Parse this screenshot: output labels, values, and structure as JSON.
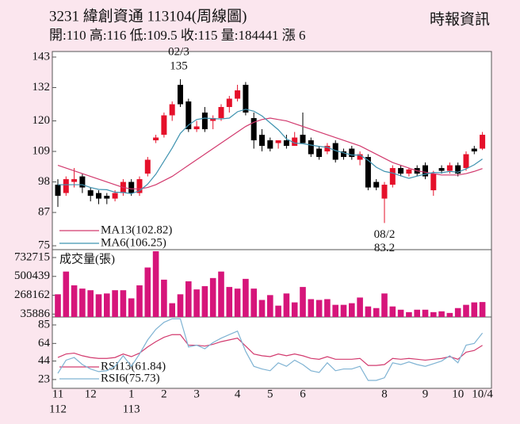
{
  "header": {
    "title": "3231 緯創資通 113104(周線圖)",
    "source": "時報資訊",
    "quote": "開:110 高:116 低:109.5 收:115 量:184441 漲 6"
  },
  "chart_data": [
    {
      "type": "candlestick",
      "categories": [
        "11",
        null,
        null,
        null,
        "12",
        null,
        null,
        null,
        null,
        "1",
        null,
        null,
        null,
        "2",
        null,
        null,
        null,
        "3",
        null,
        null,
        null,
        null,
        "4",
        null,
        null,
        null,
        "5",
        null,
        null,
        null,
        "6",
        null,
        null,
        null,
        null,
        null,
        null,
        null,
        null,
        null,
        "8",
        null,
        null,
        null,
        null,
        "9",
        null,
        null,
        null,
        "10",
        null,
        null,
        "10/4"
      ],
      "year_labels": [
        "112",
        null,
        null,
        null,
        null,
        null,
        null,
        null,
        null,
        "113",
        null,
        null,
        null,
        null,
        null,
        null,
        null,
        null,
        null,
        null,
        null,
        null,
        null,
        null,
        null,
        null,
        null,
        null,
        null,
        null,
        null,
        null,
        null,
        null,
        null,
        null,
        null,
        null,
        null,
        null,
        null,
        null,
        null,
        null,
        null,
        null,
        null,
        null,
        null,
        null,
        null,
        null,
        null
      ],
      "open": [
        97,
        94,
        98,
        100,
        95,
        94,
        93,
        92,
        94,
        98,
        94,
        101,
        113,
        115,
        122,
        133,
        127,
        117,
        123,
        120,
        121,
        125,
        128,
        133,
        121,
        115,
        113,
        112,
        113,
        111,
        115,
        113,
        110,
        109,
        112,
        109,
        110,
        106,
        107,
        98,
        92,
        97,
        103,
        101,
        103,
        104,
        95,
        103,
        102,
        104,
        103,
        110,
        110
      ],
      "high": [
        99,
        100,
        103,
        101,
        96,
        95,
        94,
        95,
        99,
        99,
        100,
        107,
        115,
        123,
        127,
        135,
        128,
        120,
        125,
        122,
        126,
        129,
        133,
        134,
        123,
        117,
        114,
        113,
        115,
        116,
        123,
        114,
        111,
        112,
        113,
        110,
        111,
        109,
        108,
        99,
        98,
        104,
        104,
        103,
        104,
        105,
        102,
        104,
        105,
        105,
        109,
        111,
        116
      ],
      "low": [
        89,
        93,
        96,
        94,
        91,
        90,
        90,
        91,
        93,
        93,
        93,
        100,
        112,
        114,
        120,
        125,
        116,
        116,
        116,
        117,
        120,
        123,
        127,
        122,
        110,
        109,
        109,
        110,
        110,
        111,
        112,
        107,
        106,
        108,
        105,
        106,
        106,
        104,
        95,
        95,
        83.2,
        96,
        100,
        100,
        100,
        99,
        93,
        101,
        101,
        100,
        102,
        108,
        109.5
      ],
      "close": [
        93,
        99,
        99,
        96,
        93,
        92,
        92,
        94,
        98,
        94,
        99,
        106,
        114,
        122,
        126,
        126,
        117,
        118,
        117,
        121,
        125,
        128,
        131,
        123,
        113,
        111,
        110,
        113,
        111,
        114,
        112,
        108,
        107,
        111,
        106,
        107,
        107,
        108,
        96,
        96,
        97,
        103,
        101,
        102.5,
        101,
        100,
        101,
        102,
        104,
        101,
        108,
        109,
        115
      ],
      "up_color": "#e5102a",
      "down_color": "#000000",
      "annotations": {
        "high": "02/3",
        "low": "08/2"
      },
      "ylim": [
        73.6,
        145
      ],
      "yticks": [
        75,
        87,
        98,
        109,
        120,
        132,
        143
      ],
      "series": [
        {
          "name": "MA13(102.82)",
          "color": "#d23a6e",
          "values": [
            104,
            103,
            102,
            101,
            100,
            99,
            98,
            97,
            96,
            95.5,
            95.5,
            96,
            97,
            98.5,
            100,
            102,
            104,
            106,
            108,
            110,
            112,
            114,
            116,
            118,
            119.5,
            120.5,
            121,
            120.5,
            120,
            119,
            118,
            117,
            116,
            115,
            114,
            113,
            112,
            111,
            109.5,
            108,
            106.5,
            105,
            104,
            103,
            102,
            101.5,
            101,
            100.5,
            100.5,
            100.5,
            101,
            101.8,
            102.82
          ]
        },
        {
          "name": "MA6(106.25)",
          "color": "#3f93b0",
          "values": [
            97,
            97,
            97,
            97,
            96,
            95.3,
            95.2,
            94.3,
            94.2,
            93.8,
            94.8,
            97.2,
            100.8,
            105.5,
            110.2,
            115.5,
            118.5,
            120.5,
            121,
            120.8,
            120.7,
            121,
            123.3,
            124.2,
            123.5,
            121.8,
            119.3,
            116.8,
            113.5,
            112,
            111.8,
            111.3,
            110.8,
            110.5,
            109.3,
            108.5,
            107.7,
            107.7,
            105.8,
            103.3,
            101.8,
            101.2,
            100.2,
            99.3,
            100.1,
            100.8,
            101.4,
            101.3,
            101.8,
            101.5,
            102.7,
            104.2,
            106.25
          ]
        }
      ]
    },
    {
      "type": "bar",
      "title": "成交量(張)",
      "color": "#d6157a",
      "values": [
        280000,
        560000,
        390000,
        350000,
        330000,
        280000,
        290000,
        330000,
        330000,
        230000,
        390000,
        610000,
        810000,
        460000,
        170000,
        280000,
        440000,
        340000,
        380000,
        480000,
        560000,
        370000,
        350000,
        470000,
        350000,
        210000,
        270000,
        140000,
        290000,
        180000,
        370000,
        220000,
        210000,
        220000,
        150000,
        150000,
        170000,
        240000,
        130000,
        110000,
        290000,
        130000,
        90000,
        60000,
        90000,
        90000,
        60000,
        70000,
        50000,
        110000,
        150000,
        180000,
        184441
      ],
      "ylim": [
        0,
        830000
      ],
      "yticks": [
        35886,
        268162,
        500439,
        732715
      ]
    },
    {
      "type": "line",
      "ylim": [
        13,
        94
      ],
      "yticks": [
        23,
        44,
        64,
        85
      ],
      "series": [
        {
          "name": "RSI13(61.84)",
          "color": "#d23a6e",
          "values": [
            48,
            52,
            53,
            50,
            48,
            47,
            47,
            48,
            52,
            49,
            53,
            60,
            66,
            71,
            74,
            74,
            62,
            62,
            61,
            63,
            66,
            68,
            70,
            61,
            52,
            50,
            49,
            52,
            50,
            52,
            50,
            47,
            46,
            49,
            46,
            46,
            46,
            47,
            39,
            39,
            40,
            47,
            46,
            47,
            46,
            45,
            46,
            47,
            49,
            46,
            54,
            56,
            61.84
          ]
        },
        {
          "name": "RSI6(75.73)",
          "color": "#7fb3d3",
          "values": [
            30,
            45,
            48,
            40,
            35,
            32,
            33,
            38,
            50,
            38,
            52,
            68,
            80,
            88,
            92,
            92,
            60,
            62,
            58,
            65,
            70,
            74,
            78,
            55,
            38,
            35,
            33,
            42,
            38,
            45,
            40,
            33,
            31,
            42,
            33,
            35,
            35,
            38,
            22,
            22,
            25,
            42,
            40,
            43,
            40,
            38,
            41,
            44,
            50,
            42,
            62,
            64,
            75.73
          ]
        }
      ]
    }
  ]
}
